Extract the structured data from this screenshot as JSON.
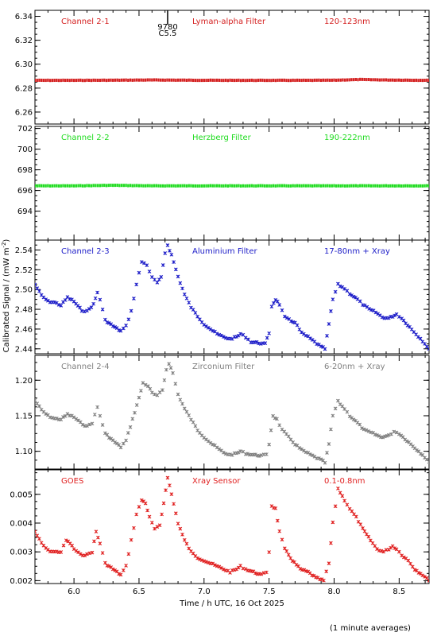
{
  "chart_data": {
    "type": "scatter",
    "xlabel": "Time / h UTC, 16 Oct 2025",
    "ylabel": "Calibrated Signal / (mW m",
    "ylabel_sup": "-2",
    "ylabel_close": ")",
    "footnote": "(1 minute averages)",
    "xlim": [
      5.7,
      8.73
    ],
    "xticks": [
      6.0,
      6.5,
      7.0,
      7.5,
      8.0,
      8.5
    ],
    "xtick_labels": [
      "6.0",
      "6.5",
      "7.0",
      "7.5",
      "8.0",
      "8.5"
    ],
    "marker_annotation": {
      "x": 6.72,
      "lines": [
        "9780",
        "C5.5"
      ]
    },
    "panels": [
      {
        "channel": "Channel 2-1",
        "filter": "Lyman-alpha Filter",
        "band": "120-123nm",
        "color": "#d42020",
        "ylim": [
          6.25,
          6.345
        ],
        "yticks": [
          6.26,
          6.28,
          6.3,
          6.32,
          6.34
        ],
        "ytick_labels": [
          "6.26",
          "6.28",
          "6.30",
          "6.32",
          "6.34"
        ],
        "points": [
          [
            5.7,
            6.2865
          ],
          [
            6.0,
            6.2865
          ],
          [
            6.3,
            6.2866
          ],
          [
            6.6,
            6.2868
          ],
          [
            6.9,
            6.2866
          ],
          [
            7.2,
            6.2865
          ],
          [
            7.5,
            6.2865
          ],
          [
            7.8,
            6.2865
          ],
          [
            8.0,
            6.2866
          ],
          [
            8.2,
            6.2872
          ],
          [
            8.4,
            6.2868
          ],
          [
            8.73,
            6.2865
          ]
        ]
      },
      {
        "channel": "Channel 2-2",
        "filter": "Herzberg Filter",
        "band": "190-222nm",
        "color": "#20dc20",
        "ylim": [
          691.2,
          702.2
        ],
        "yticks": [
          694,
          696,
          698,
          700,
          702
        ],
        "ytick_labels": [
          "694",
          "696",
          "698",
          "700",
          "702"
        ],
        "points": [
          [
            5.7,
            696.45
          ],
          [
            6.0,
            696.45
          ],
          [
            6.3,
            696.5
          ],
          [
            6.6,
            696.45
          ],
          [
            6.9,
            696.45
          ],
          [
            7.2,
            696.45
          ],
          [
            7.5,
            696.45
          ],
          [
            7.8,
            696.45
          ],
          [
            8.0,
            696.45
          ],
          [
            8.2,
            696.45
          ],
          [
            8.4,
            696.45
          ],
          [
            8.73,
            696.45
          ]
        ]
      },
      {
        "channel": "Channel 2-3",
        "filter": "Aluminium Filter",
        "band": "17-80nm + Xray",
        "color": "#1c1cc8",
        "ylim": [
          2.435,
          2.55
        ],
        "yticks": [
          2.44,
          2.46,
          2.48,
          2.5,
          2.52,
          2.54
        ],
        "ytick_labels": [
          "2.44",
          "2.46",
          "2.48",
          "2.50",
          "2.52",
          "2.54"
        ],
        "points": [
          [
            5.7,
            2.505
          ],
          [
            5.75,
            2.494
          ],
          [
            5.8,
            2.488
          ],
          [
            5.85,
            2.487
          ],
          [
            5.9,
            2.484
          ],
          [
            5.95,
            2.492
          ],
          [
            6.0,
            2.488
          ],
          [
            6.03,
            2.483
          ],
          [
            6.06,
            2.479
          ],
          [
            6.1,
            2.478
          ],
          [
            6.15,
            2.485
          ],
          [
            6.18,
            2.497
          ],
          [
            6.2,
            2.49
          ],
          [
            6.24,
            2.469
          ],
          [
            6.3,
            2.463
          ],
          [
            6.36,
            2.458
          ],
          [
            6.4,
            2.463
          ],
          [
            6.44,
            2.478
          ],
          [
            6.48,
            2.505
          ],
          [
            6.52,
            2.528
          ],
          [
            6.56,
            2.525
          ],
          [
            6.6,
            2.512
          ],
          [
            6.64,
            2.507
          ],
          [
            6.67,
            2.512
          ],
          [
            6.7,
            2.537
          ],
          [
            6.72,
            2.545
          ],
          [
            6.75,
            2.535
          ],
          [
            6.8,
            2.513
          ],
          [
            6.85,
            2.495
          ],
          [
            6.9,
            2.482
          ],
          [
            6.95,
            2.473
          ],
          [
            7.0,
            2.465
          ],
          [
            7.05,
            2.46
          ],
          [
            7.1,
            2.455
          ],
          [
            7.15,
            2.452
          ],
          [
            7.2,
            2.45
          ],
          [
            7.25,
            2.452
          ],
          [
            7.28,
            2.455
          ],
          [
            7.32,
            2.452
          ],
          [
            7.36,
            2.447
          ],
          [
            7.42,
            2.446
          ],
          [
            7.47,
            2.445
          ],
          [
            7.5,
            2.456
          ],
          [
            7.52,
            2.483
          ],
          [
            7.55,
            2.49
          ],
          [
            7.58,
            2.485
          ],
          [
            7.62,
            2.472
          ],
          [
            7.67,
            2.468
          ],
          [
            7.7,
            2.467
          ],
          [
            7.75,
            2.456
          ],
          [
            7.8,
            2.452
          ],
          [
            7.85,
            2.447
          ],
          [
            7.9,
            2.442
          ],
          [
            7.93,
            2.44
          ],
          [
            7.96,
            2.465
          ],
          [
            7.99,
            2.49
          ],
          [
            8.03,
            2.505
          ],
          [
            8.08,
            2.501
          ],
          [
            8.12,
            2.496
          ],
          [
            8.18,
            2.49
          ],
          [
            8.22,
            2.485
          ],
          [
            8.27,
            2.48
          ],
          [
            8.32,
            2.477
          ],
          [
            8.37,
            2.472
          ],
          [
            8.42,
            2.471
          ],
          [
            8.48,
            2.475
          ],
          [
            8.52,
            2.471
          ],
          [
            8.58,
            2.462
          ],
          [
            8.63,
            2.455
          ],
          [
            8.68,
            2.448
          ],
          [
            8.73,
            2.44
          ]
        ]
      },
      {
        "channel": "Channel 2-4",
        "filter": "Zirconium Filter",
        "band": "6-20nm + Xray",
        "color": "#808080",
        "ylim": [
          1.075,
          1.235
        ],
        "yticks": [
          1.1,
          1.15,
          1.2
        ],
        "ytick_labels": [
          "1.10",
          "1.15",
          "1.20"
        ],
        "points": [
          [
            5.7,
            1.172
          ],
          [
            5.75,
            1.158
          ],
          [
            5.8,
            1.15
          ],
          [
            5.85,
            1.146
          ],
          [
            5.9,
            1.145
          ],
          [
            5.95,
            1.152
          ],
          [
            6.0,
            1.148
          ],
          [
            6.05,
            1.14
          ],
          [
            6.1,
            1.135
          ],
          [
            6.14,
            1.14
          ],
          [
            6.18,
            1.162
          ],
          [
            6.2,
            1.15
          ],
          [
            6.24,
            1.125
          ],
          [
            6.3,
            1.115
          ],
          [
            6.36,
            1.106
          ],
          [
            6.4,
            1.115
          ],
          [
            6.45,
            1.145
          ],
          [
            6.5,
            1.175
          ],
          [
            6.53,
            1.196
          ],
          [
            6.57,
            1.192
          ],
          [
            6.6,
            1.182
          ],
          [
            6.64,
            1.178
          ],
          [
            6.68,
            1.186
          ],
          [
            6.71,
            1.215
          ],
          [
            6.73,
            1.224
          ],
          [
            6.76,
            1.21
          ],
          [
            6.8,
            1.18
          ],
          [
            6.85,
            1.16
          ],
          [
            6.9,
            1.145
          ],
          [
            6.95,
            1.13
          ],
          [
            7.0,
            1.12
          ],
          [
            7.05,
            1.112
          ],
          [
            7.1,
            1.105
          ],
          [
            7.15,
            1.098
          ],
          [
            7.2,
            1.095
          ],
          [
            7.25,
            1.097
          ],
          [
            7.28,
            1.1
          ],
          [
            7.32,
            1.097
          ],
          [
            7.38,
            1.095
          ],
          [
            7.44,
            1.094
          ],
          [
            7.48,
            1.095
          ],
          [
            7.5,
            1.11
          ],
          [
            7.53,
            1.15
          ],
          [
            7.56,
            1.145
          ],
          [
            7.6,
            1.13
          ],
          [
            7.65,
            1.12
          ],
          [
            7.7,
            1.11
          ],
          [
            7.75,
            1.102
          ],
          [
            7.8,
            1.097
          ],
          [
            7.85,
            1.092
          ],
          [
            7.9,
            1.088
          ],
          [
            7.93,
            1.084
          ],
          [
            7.96,
            1.11
          ],
          [
            7.99,
            1.15
          ],
          [
            8.03,
            1.17
          ],
          [
            8.08,
            1.16
          ],
          [
            8.12,
            1.15
          ],
          [
            8.18,
            1.14
          ],
          [
            8.23,
            1.13
          ],
          [
            8.3,
            1.125
          ],
          [
            8.36,
            1.12
          ],
          [
            8.42,
            1.122
          ],
          [
            8.46,
            1.128
          ],
          [
            8.5,
            1.125
          ],
          [
            8.56,
            1.115
          ],
          [
            8.62,
            1.105
          ],
          [
            8.68,
            1.095
          ],
          [
            8.73,
            1.085
          ]
        ]
      },
      {
        "channel": "GOES",
        "filter": "Xray Sensor",
        "band": "0.1-0.8nm",
        "color": "#e02020",
        "ylim": [
          0.0019,
          0.00585
        ],
        "yticks": [
          0.002,
          0.003,
          0.004,
          0.005
        ],
        "ytick_labels": [
          "0.002",
          "0.003",
          "0.004",
          "0.005"
        ],
        "points": [
          [
            5.7,
            0.0037
          ],
          [
            5.75,
            0.0033
          ],
          [
            5.8,
            0.00305
          ],
          [
            5.85,
            0.003
          ],
          [
            5.9,
            0.003
          ],
          [
            5.94,
            0.0034
          ],
          [
            5.97,
            0.0033
          ],
          [
            6.0,
            0.0031
          ],
          [
            6.05,
            0.0029
          ],
          [
            6.1,
            0.0029
          ],
          [
            6.14,
            0.003
          ],
          [
            6.17,
            0.0037
          ],
          [
            6.2,
            0.0033
          ],
          [
            6.24,
            0.0026
          ],
          [
            6.3,
            0.0024
          ],
          [
            6.36,
            0.0022
          ],
          [
            6.4,
            0.0025
          ],
          [
            6.44,
            0.0034
          ],
          [
            6.48,
            0.0043
          ],
          [
            6.52,
            0.0048
          ],
          [
            6.55,
            0.0047
          ],
          [
            6.58,
            0.0042
          ],
          [
            6.62,
            0.0038
          ],
          [
            6.66,
            0.0039
          ],
          [
            6.69,
            0.0047
          ],
          [
            6.72,
            0.0056
          ],
          [
            6.75,
            0.005
          ],
          [
            6.8,
            0.004
          ],
          [
            6.85,
            0.0034
          ],
          [
            6.9,
            0.003
          ],
          [
            6.95,
            0.0028
          ],
          [
            7.0,
            0.0027
          ],
          [
            7.05,
            0.0026
          ],
          [
            7.1,
            0.0025
          ],
          [
            7.15,
            0.0024
          ],
          [
            7.2,
            0.0023
          ],
          [
            7.25,
            0.0024
          ],
          [
            7.28,
            0.0025
          ],
          [
            7.32,
            0.0024
          ],
          [
            7.38,
            0.0023
          ],
          [
            7.44,
            0.0022
          ],
          [
            7.48,
            0.0023
          ],
          [
            7.5,
            0.003
          ],
          [
            7.52,
            0.0046
          ],
          [
            7.55,
            0.0045
          ],
          [
            7.58,
            0.0037
          ],
          [
            7.62,
            0.0031
          ],
          [
            7.68,
            0.0027
          ],
          [
            7.74,
            0.0024
          ],
          [
            7.8,
            0.0023
          ],
          [
            7.86,
            0.0021
          ],
          [
            7.92,
            0.002
          ],
          [
            7.96,
            0.0026
          ],
          [
            7.99,
            0.004
          ],
          [
            8.03,
            0.0052
          ],
          [
            8.08,
            0.0048
          ],
          [
            8.12,
            0.0045
          ],
          [
            8.17,
            0.0042
          ],
          [
            8.22,
            0.0038
          ],
          [
            8.28,
            0.0034
          ],
          [
            8.33,
            0.0031
          ],
          [
            8.38,
            0.003
          ],
          [
            8.42,
            0.0031
          ],
          [
            8.45,
            0.0032
          ],
          [
            8.48,
            0.0031
          ],
          [
            8.52,
            0.0029
          ],
          [
            8.57,
            0.0027
          ],
          [
            8.62,
            0.0024
          ],
          [
            8.68,
            0.0022
          ],
          [
            8.73,
            0.002
          ]
        ]
      }
    ]
  }
}
